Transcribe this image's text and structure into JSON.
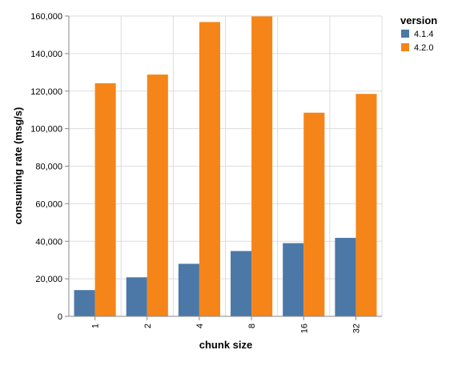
{
  "chart_data": {
    "type": "bar",
    "xlabel": "chunk size",
    "ylabel": "consuming rate (msg/s)",
    "categories": [
      "1",
      "2",
      "4",
      "8",
      "16",
      "32"
    ],
    "ylim": [
      0,
      160000
    ],
    "yticks": [
      0,
      20000,
      40000,
      60000,
      80000,
      100000,
      120000,
      140000,
      160000
    ],
    "ytick_labels": [
      "0",
      "20,000",
      "40,000",
      "60,000",
      "80,000",
      "100,000",
      "120,000",
      "140,000",
      "160,000"
    ],
    "grid": true,
    "legend": {
      "title": "version",
      "position": "top-right"
    },
    "series": [
      {
        "name": "4.1.4",
        "color": "#4c78a8",
        "values": [
          14000,
          20800,
          28000,
          34800,
          39000,
          41800
        ]
      },
      {
        "name": "4.2.0",
        "color": "#f58518",
        "values": [
          124200,
          128800,
          156800,
          159800,
          108500,
          118500
        ]
      }
    ]
  }
}
